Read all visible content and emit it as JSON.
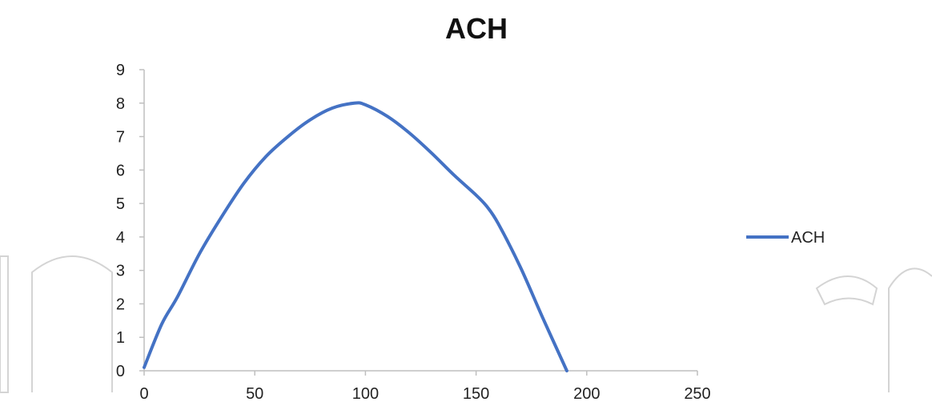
{
  "chart_data": {
    "type": "line",
    "title": "ACH",
    "xlabel": "",
    "ylabel": "",
    "xlim": [
      0,
      250
    ],
    "ylim": [
      0,
      9
    ],
    "x_ticks": [
      0,
      50,
      100,
      150,
      200,
      250
    ],
    "y_ticks": [
      0,
      1,
      2,
      3,
      4,
      5,
      6,
      7,
      8,
      9
    ],
    "grid": false,
    "legend_position": "right",
    "series": [
      {
        "name": "ACH",
        "color": "#4472C4",
        "x": [
          0,
          8,
          15,
          25,
          35,
          45,
          55,
          65,
          75,
          85,
          95,
          100,
          110,
          120,
          130,
          140,
          150,
          155,
          160,
          170,
          180,
          191
        ],
        "y": [
          0.1,
          1.4,
          2.2,
          3.5,
          4.6,
          5.6,
          6.4,
          7.0,
          7.5,
          7.85,
          8.0,
          7.95,
          7.6,
          7.1,
          6.5,
          5.85,
          5.25,
          4.9,
          4.4,
          3.1,
          1.6,
          0.0
        ]
      }
    ]
  }
}
